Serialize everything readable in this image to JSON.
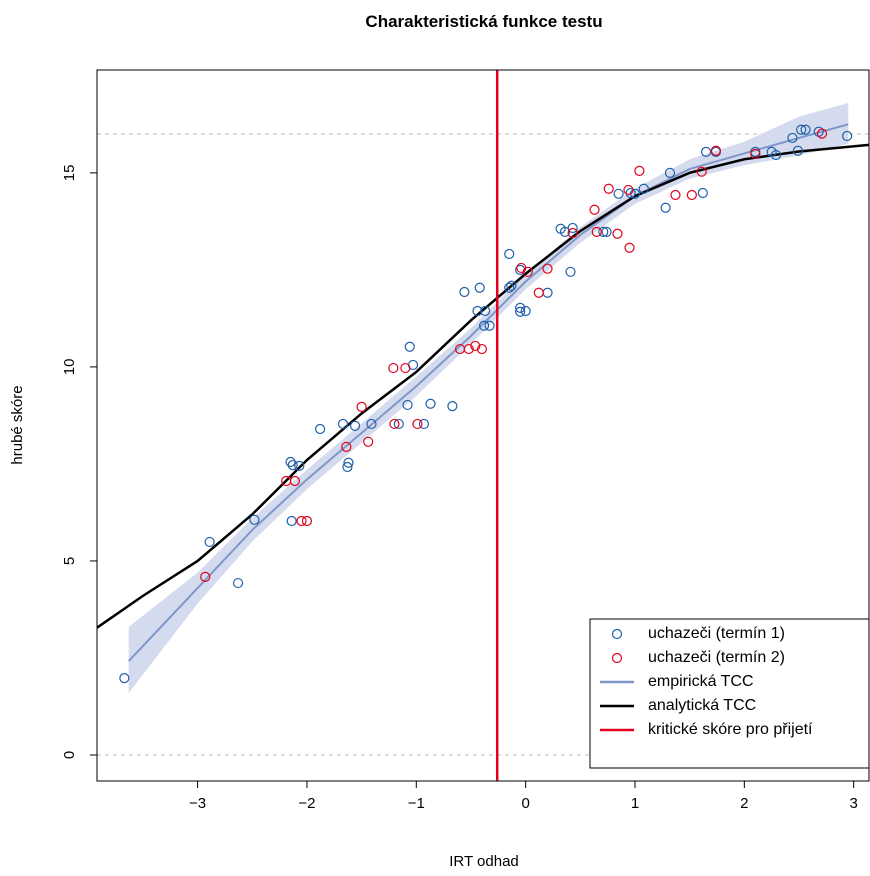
{
  "chart_data": {
    "type": "line",
    "title": "Charakteristická funkce testu",
    "xlabel": "IRT odhad",
    "ylabel": "hrubé skóre",
    "xlim": [
      -3.92,
      3.14
    ],
    "ylim": [
      -0.67,
      17.65
    ],
    "xticks": [
      {
        "value": -3,
        "label": "−3"
      },
      {
        "value": -2,
        "label": "−2"
      },
      {
        "value": -1,
        "label": "−1"
      },
      0,
      1,
      2,
      3
    ],
    "yticks": [
      0,
      5,
      10,
      15
    ],
    "hlines": [
      0,
      16
    ],
    "legend": "bottom-right",
    "series": [
      {
        "name": "uchazeči (termín 1)",
        "style": "points",
        "color": "#1f5fa8",
        "x": [
          -3.67,
          -2.89,
          -2.63,
          -2.48,
          -2.15,
          -2.13,
          -2.14,
          -2.07,
          -1.88,
          -1.67,
          -1.63,
          -1.62,
          -1.56,
          -1.41,
          -1.16,
          -1.08,
          -0.93,
          -0.87,
          -1.06,
          -1.03,
          -0.67,
          -0.56,
          -0.42,
          -0.44,
          -0.37,
          -0.38,
          -0.33,
          -0.15,
          -0.15,
          -0.13,
          -0.05,
          0.0,
          -0.05,
          -0.05,
          0.2,
          0.41,
          0.32,
          0.36,
          0.43,
          0.71,
          0.74,
          0.85,
          0.96,
          1.0,
          1.08,
          1.28,
          1.32,
          1.62,
          1.65,
          1.74,
          2.1,
          2.25,
          2.29,
          2.44,
          2.49,
          2.52,
          2.56,
          2.68,
          2.94
        ],
        "values": [
          1.98,
          5.49,
          4.43,
          6.06,
          7.55,
          7.47,
          6.03,
          7.45,
          8.4,
          8.53,
          7.42,
          7.53,
          8.48,
          8.53,
          8.53,
          9.02,
          8.53,
          9.05,
          10.52,
          10.05,
          8.99,
          11.93,
          12.04,
          11.44,
          11.44,
          11.06,
          11.06,
          12.91,
          12.04,
          12.09,
          11.42,
          11.44,
          11.52,
          12.5,
          11.91,
          12.45,
          13.56,
          13.48,
          13.58,
          13.48,
          13.48,
          14.46,
          14.48,
          14.46,
          14.59,
          14.1,
          15.0,
          14.48,
          15.54,
          15.54,
          15.54,
          15.54,
          15.46,
          15.9,
          15.57,
          16.11,
          16.11,
          16.06,
          15.95
        ]
      },
      {
        "name": "uchazeči (termín 2)",
        "style": "points",
        "color": "#e3001b",
        "x": [
          -2.93,
          -2.19,
          -2.11,
          -2.05,
          -2.0,
          -1.64,
          -1.5,
          -1.44,
          -1.21,
          -1.1,
          -1.2,
          -0.99,
          -0.6,
          -0.52,
          -0.46,
          -0.4,
          -0.04,
          0.02,
          0.12,
          0.2,
          0.63,
          0.65,
          0.43,
          0.76,
          0.84,
          0.94,
          0.95,
          1.04,
          1.37,
          1.52,
          1.61,
          1.74,
          2.1,
          2.71
        ],
        "values": [
          4.59,
          7.06,
          7.06,
          6.03,
          6.03,
          7.94,
          8.97,
          8.07,
          9.97,
          9.97,
          8.53,
          8.53,
          10.46,
          10.46,
          10.54,
          10.46,
          12.55,
          12.45,
          11.91,
          12.53,
          14.05,
          13.48,
          13.45,
          14.59,
          13.43,
          14.56,
          13.07,
          15.05,
          14.43,
          14.43,
          15.03,
          15.57,
          15.49,
          16.01
        ]
      },
      {
        "name": "empirická TCC",
        "style": "line",
        "color": "#7f96c8",
        "band_color": "#d5dbee",
        "x": [
          -3.63,
          -3,
          -2.5,
          -2,
          -1.5,
          -1,
          -0.5,
          0,
          0.5,
          1,
          1.5,
          2,
          2.5,
          2.95
        ],
        "values": [
          2.42,
          4.3,
          5.8,
          7.1,
          8.3,
          9.5,
          10.8,
          12.2,
          13.4,
          14.4,
          15.1,
          15.5,
          15.9,
          16.25
        ],
        "band_lower": [
          1.6,
          3.9,
          5.5,
          6.85,
          8.05,
          9.25,
          10.6,
          12.0,
          13.2,
          14.2,
          14.85,
          15.2,
          15.45,
          15.75
        ],
        "band_upper": [
          3.3,
          4.7,
          6.1,
          7.35,
          8.55,
          9.75,
          11.0,
          12.4,
          13.6,
          14.6,
          15.35,
          15.8,
          16.45,
          16.8
        ]
      },
      {
        "name": "analytická TCC",
        "style": "line",
        "color": "#000000",
        "x": [
          -3.92,
          -3.5,
          -3,
          -2.5,
          -2,
          -1.5,
          -1,
          -0.5,
          0,
          0.5,
          1,
          1.5,
          2,
          2.5,
          3.14
        ],
        "values": [
          3.28,
          4.1,
          5.0,
          6.2,
          7.6,
          8.8,
          9.87,
          11.2,
          12.4,
          13.5,
          14.4,
          15.0,
          15.35,
          15.55,
          15.72
        ]
      },
      {
        "name": "kritické skóre pro přijetí",
        "style": "vline",
        "color": "#e3001b",
        "x": -0.26
      }
    ]
  }
}
